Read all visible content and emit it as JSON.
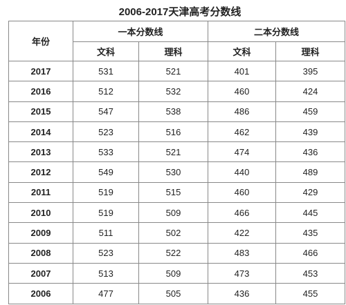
{
  "title": "2006-2017天津高考分数线",
  "table": {
    "header": {
      "year": "年份",
      "groups": [
        "一本分数线",
        "二本分数线"
      ],
      "subjects": [
        "文科",
        "理科",
        "文科",
        "理科"
      ]
    },
    "rows": [
      [
        2017,
        531,
        521,
        401,
        395
      ],
      [
        2016,
        512,
        532,
        460,
        424
      ],
      [
        2015,
        547,
        538,
        486,
        459
      ],
      [
        2014,
        523,
        516,
        462,
        439
      ],
      [
        2013,
        533,
        521,
        474,
        436
      ],
      [
        2012,
        549,
        530,
        440,
        489
      ],
      [
        2011,
        519,
        515,
        460,
        429
      ],
      [
        2010,
        519,
        509,
        466,
        445
      ],
      [
        2009,
        511,
        502,
        422,
        435
      ],
      [
        2008,
        523,
        522,
        483,
        466
      ],
      [
        2007,
        513,
        509,
        473,
        453
      ],
      [
        2006,
        477,
        505,
        436,
        455
      ]
    ]
  }
}
